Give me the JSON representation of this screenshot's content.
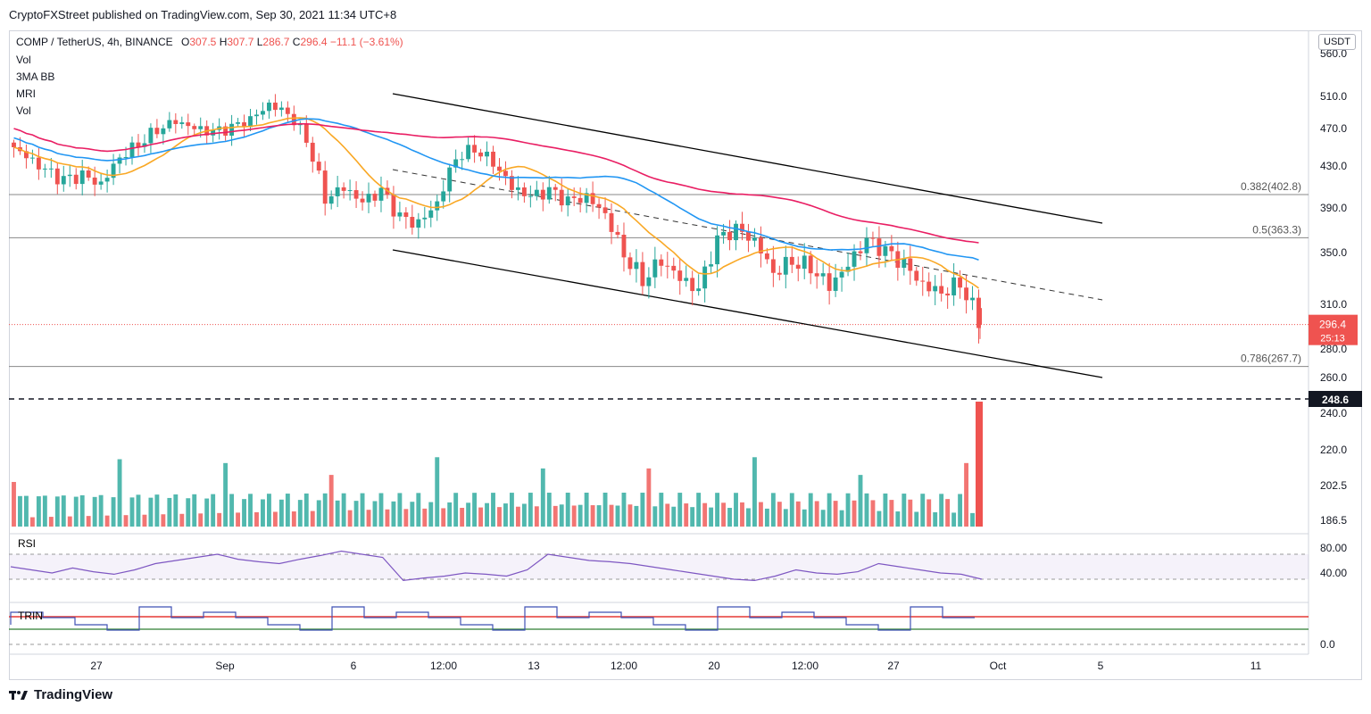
{
  "publisher_line": "CryptoFXStreet published on TradingView.com, Sep 30, 2021 11:34 UTC+8",
  "footer_brand": "TradingView",
  "quote_currency": "USDT",
  "ohlc": {
    "symbol": "COMP / TetherUS, 4h, BINANCE",
    "o_label": "O",
    "o": "307.5",
    "h_label": "H",
    "h": "307.7",
    "l_label": "L",
    "l": "286.7",
    "c_label": "C",
    "c": "296.4",
    "change": "−11.1 (−3.61%)"
  },
  "indicators": [
    "Vol",
    "3MA BB",
    "MRI",
    "Vol"
  ],
  "current_price_badge": {
    "price": "296.4",
    "countdown": "25:13",
    "color": "#ef5350"
  },
  "support_badge": {
    "price": "248.6"
  },
  "colors": {
    "up": "#26a69a",
    "down": "#ef5350",
    "ma_orange": "#f9a825",
    "ma_blue": "#2196f3",
    "ma_red": "#e91e63",
    "rsi": "#7e57c2",
    "trin": "#3f51b5"
  },
  "chart_data": {
    "type": "candlestick",
    "price_axis_ticks": [
      "560.0",
      "510.0",
      "470.0",
      "430.0",
      "390.0",
      "350.0",
      "310.0",
      "280.0",
      "260.0",
      "240.0",
      "220.0",
      "202.5",
      "186.5"
    ],
    "time_axis_ticks": [
      "27",
      "Sep",
      "6",
      "12:00",
      "13",
      "12:00",
      "20",
      "12:00",
      "27",
      "Oct",
      "5",
      "11"
    ],
    "fib_levels": [
      {
        "label": "0.382(402.8)",
        "value": 402.8
      },
      {
        "label": "0.5(363.3)",
        "value": 363.3
      },
      {
        "label": "0.786(267.7)",
        "value": 267.7
      }
    ],
    "support_line": 248.6,
    "last_price": 296.4,
    "close_path": [
      455,
      440,
      425,
      415,
      420,
      412,
      440,
      455,
      470,
      480,
      470,
      465,
      470,
      480,
      500,
      490,
      460,
      400,
      410,
      395,
      405,
      380,
      375,
      395,
      440,
      450,
      435,
      410,
      400,
      405,
      395,
      400,
      385,
      350,
      330,
      345,
      330,
      320,
      360,
      370,
      360,
      335,
      345,
      340,
      325,
      340,
      360,
      350,
      340,
      325,
      320,
      328,
      300
    ],
    "rsi": {
      "label": "RSI",
      "ticks": [
        "80.00",
        "40.00"
      ],
      "values": [
        50,
        45,
        40,
        48,
        42,
        38,
        45,
        55,
        60,
        65,
        70,
        62,
        58,
        55,
        62,
        68,
        75,
        70,
        65,
        28,
        32,
        35,
        40,
        38,
        35,
        45,
        70,
        65,
        60,
        58,
        55,
        50,
        45,
        40,
        35,
        30,
        28,
        35,
        45,
        40,
        38,
        42,
        55,
        50,
        45,
        40,
        38,
        30
      ]
    },
    "trin": {
      "label": "TRIN",
      "ticks": [
        "0.0"
      ]
    },
    "volume_labels": []
  }
}
